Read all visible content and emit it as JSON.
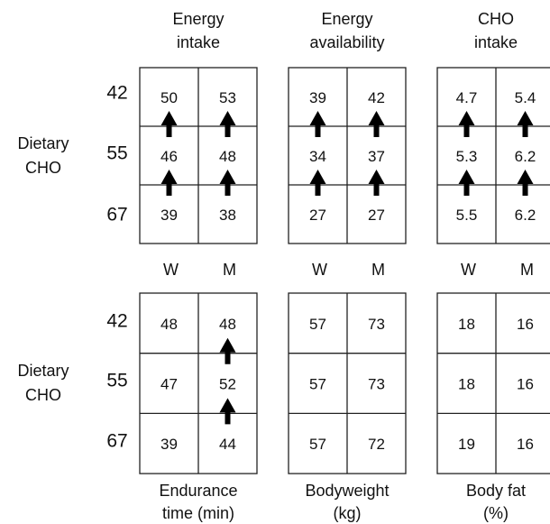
{
  "row_title": [
    "Dietary",
    "CHO"
  ],
  "rows": [
    "42",
    "55",
    "67"
  ],
  "columns": [
    "W",
    "M"
  ],
  "top_panels": [
    {
      "title": [
        "Energy",
        "intake"
      ],
      "values": [
        [
          50,
          53
        ],
        [
          46,
          48
        ],
        [
          39,
          38
        ]
      ]
    },
    {
      "title": [
        "Energy",
        "availability"
      ],
      "values": [
        [
          39,
          42
        ],
        [
          34,
          37
        ],
        [
          27,
          27
        ]
      ]
    },
    {
      "title": [
        "CHO",
        "intake"
      ],
      "values": [
        [
          4.7,
          5.4
        ],
        [
          5.3,
          6.2
        ],
        [
          5.5,
          6.2
        ]
      ]
    }
  ],
  "bottom_panels": [
    {
      "title": [
        "Endurance",
        "time (min)"
      ],
      "values": [
        [
          48,
          48
        ],
        [
          47,
          52
        ],
        [
          39,
          44
        ]
      ]
    },
    {
      "title": [
        "Bodyweight",
        "(kg)"
      ],
      "values": [
        [
          57,
          73
        ],
        [
          57,
          73
        ],
        [
          57,
          72
        ]
      ]
    },
    {
      "title": [
        "Body fat",
        "(%)"
      ],
      "values": [
        [
          18,
          16
        ],
        [
          18,
          16
        ],
        [
          19,
          16
        ]
      ]
    }
  ]
}
